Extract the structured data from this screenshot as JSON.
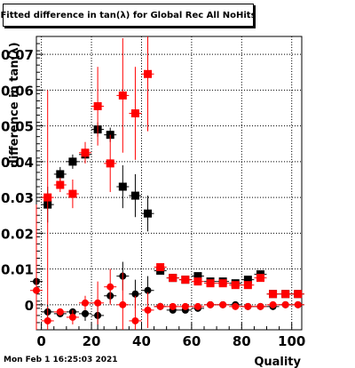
{
  "title": "Fitted difference in tan(λ) for Global Rec All NoHits",
  "timestamp": "Mon Feb  1 16:25:03 2021",
  "chart_data": {
    "type": "scatter",
    "title": "Fitted difference in tan(λ) for Global Rec All NoHits",
    "xlabel": "Quality",
    "ylabel": "difference in tan(λ)",
    "xlim": [
      -2,
      104
    ],
    "ylim": [
      -0.007,
      0.075
    ],
    "grid": true,
    "x_ticks": [
      0,
      20,
      40,
      60,
      80,
      100
    ],
    "y_ticks": [
      0,
      0.01,
      0.02,
      0.03,
      0.04,
      0.05,
      0.06,
      0.07
    ],
    "y_tick_labels": [
      "0",
      "0.01",
      "0.02",
      "0.03",
      "0.04",
      "0.05",
      "0.06",
      "0.07"
    ],
    "series": [
      {
        "marker": "square",
        "color": "#000000",
        "points": [
          {
            "x": 2.5,
            "y": 0.028,
            "err": 0.005
          },
          {
            "x": 7.5,
            "y": 0.0365,
            "err": 0.002
          },
          {
            "x": 12.5,
            "y": 0.04,
            "err": 0.002
          },
          {
            "x": 17.5,
            "y": 0.042,
            "err": 0.002
          },
          {
            "x": 22.5,
            "y": 0.049,
            "err": 0.002
          },
          {
            "x": 27.5,
            "y": 0.0475,
            "err": 0.002
          },
          {
            "x": 32.5,
            "y": 0.033,
            "err": 0.006
          },
          {
            "x": 37.5,
            "y": 0.0305,
            "err": 0.006
          },
          {
            "x": 42.5,
            "y": 0.0255,
            "err": 0.005
          },
          {
            "x": 47.5,
            "y": 0.0095,
            "err": 0.001
          },
          {
            "x": 52.5,
            "y": 0.0075,
            "err": 0.0005
          },
          {
            "x": 57.5,
            "y": 0.007,
            "err": 0.0005
          },
          {
            "x": 62.5,
            "y": 0.008,
            "err": 0.0005
          },
          {
            "x": 67.5,
            "y": 0.0065,
            "err": 0.0005
          },
          {
            "x": 72.5,
            "y": 0.0065,
            "err": 0.0005
          },
          {
            "x": 77.5,
            "y": 0.006,
            "err": 0.0005
          },
          {
            "x": 82.5,
            "y": 0.007,
            "err": 0.0005
          },
          {
            "x": 87.5,
            "y": 0.0085,
            "err": 0.0005
          },
          {
            "x": 92.5,
            "y": 0.003,
            "err": 0.0005
          },
          {
            "x": 97.5,
            "y": 0.003,
            "err": 0.0005
          },
          {
            "x": 102.5,
            "y": 0.003,
            "err": 0.0005
          }
        ]
      },
      {
        "marker": "square",
        "color": "#ff0000",
        "points": [
          {
            "x": 2.5,
            "y": 0.03,
            "err": 0.03
          },
          {
            "x": 7.5,
            "y": 0.0335,
            "err": 0.002
          },
          {
            "x": 12.5,
            "y": 0.031,
            "err": 0.004
          },
          {
            "x": 17.5,
            "y": 0.0425,
            "err": 0.003
          },
          {
            "x": 22.5,
            "y": 0.0555,
            "err": 0.011
          },
          {
            "x": 27.5,
            "y": 0.0395,
            "err": 0.008
          },
          {
            "x": 32.5,
            "y": 0.0585,
            "err": 0.016
          },
          {
            "x": 37.5,
            "y": 0.0535,
            "err": 0.013
          },
          {
            "x": 42.5,
            "y": 0.0645,
            "err": 0.016
          },
          {
            "x": 47.5,
            "y": 0.0105,
            "err": 0.0007
          },
          {
            "x": 52.5,
            "y": 0.0075,
            "err": 0.0005
          },
          {
            "x": 57.5,
            "y": 0.007,
            "err": 0.0005
          },
          {
            "x": 62.5,
            "y": 0.0065,
            "err": 0.0005
          },
          {
            "x": 67.5,
            "y": 0.006,
            "err": 0.0005
          },
          {
            "x": 72.5,
            "y": 0.006,
            "err": 0.0005
          },
          {
            "x": 77.5,
            "y": 0.0055,
            "err": 0.0005
          },
          {
            "x": 82.5,
            "y": 0.0055,
            "err": 0.0005
          },
          {
            "x": 87.5,
            "y": 0.0075,
            "err": 0.0005
          },
          {
            "x": 92.5,
            "y": 0.003,
            "err": 0.0005
          },
          {
            "x": 97.5,
            "y": 0.003,
            "err": 0.0005
          },
          {
            "x": 102.5,
            "y": 0.003,
            "err": 0.0005
          }
        ]
      },
      {
        "marker": "circle",
        "color": "#000000",
        "points": [
          {
            "x": -2,
            "y": 0.0065,
            "err": 0.002
          },
          {
            "x": 2.5,
            "y": -0.002,
            "err": 0.002
          },
          {
            "x": 7.5,
            "y": -0.0025,
            "err": 0.001
          },
          {
            "x": 12.5,
            "y": -0.002,
            "err": 0.001
          },
          {
            "x": 17.5,
            "y": -0.0025,
            "err": 0.002
          },
          {
            "x": 22.5,
            "y": -0.003,
            "err": 0.004
          },
          {
            "x": 27.5,
            "y": 0.0025,
            "err": 0.002
          },
          {
            "x": 32.5,
            "y": 0.008,
            "err": 0.004
          },
          {
            "x": 37.5,
            "y": 0.003,
            "err": 0.004
          },
          {
            "x": 42.5,
            "y": 0.004,
            "err": 0.004
          },
          {
            "x": 47.5,
            "y": -0.0005,
            "err": 0.001
          },
          {
            "x": 52.5,
            "y": -0.0015,
            "err": 0.0005
          },
          {
            "x": 57.5,
            "y": -0.0015,
            "err": 0.0005
          },
          {
            "x": 62.5,
            "y": -0.001,
            "err": 0.0005
          },
          {
            "x": 67.5,
            "y": 0.0,
            "err": 0.0005
          },
          {
            "x": 72.5,
            "y": 0.0,
            "err": 0.0005
          },
          {
            "x": 77.5,
            "y": 0.0,
            "err": 0.0005
          },
          {
            "x": 82.5,
            "y": -0.0005,
            "err": 0.0005
          },
          {
            "x": 87.5,
            "y": -0.0005,
            "err": 0.0005
          },
          {
            "x": 92.5,
            "y": -0.0005,
            "err": 0.0005
          },
          {
            "x": 97.5,
            "y": 0.0,
            "err": 0.0005
          },
          {
            "x": 102.5,
            "y": 0.0,
            "err": 0.0005
          }
        ]
      },
      {
        "marker": "circle",
        "color": "#ff0000",
        "points": [
          {
            "x": -2,
            "y": 0.004,
            "err": 0.024
          },
          {
            "x": 2.5,
            "y": -0.0045,
            "err": 0.004
          },
          {
            "x": 7.5,
            "y": -0.002,
            "err": 0.001
          },
          {
            "x": 12.5,
            "y": -0.0035,
            "err": 0.002
          },
          {
            "x": 17.5,
            "y": 0.0005,
            "err": 0.002
          },
          {
            "x": 22.5,
            "y": 0.0005,
            "err": 0.006
          },
          {
            "x": 27.5,
            "y": 0.005,
            "err": 0.005
          },
          {
            "x": 32.5,
            "y": 0.0,
            "err": 0.009
          },
          {
            "x": 37.5,
            "y": -0.0045,
            "err": 0.007
          },
          {
            "x": 42.5,
            "y": -0.0015,
            "err": 0.005
          },
          {
            "x": 47.5,
            "y": -0.0005,
            "err": 0.001
          },
          {
            "x": 52.5,
            "y": -0.0005,
            "err": 0.0005
          },
          {
            "x": 57.5,
            "y": -0.0005,
            "err": 0.0005
          },
          {
            "x": 62.5,
            "y": -0.0005,
            "err": 0.0005
          },
          {
            "x": 67.5,
            "y": 0.0,
            "err": 0.0005
          },
          {
            "x": 72.5,
            "y": 0.0,
            "err": 0.0005
          },
          {
            "x": 77.5,
            "y": -0.0005,
            "err": 0.0005
          },
          {
            "x": 82.5,
            "y": -0.0005,
            "err": 0.0005
          },
          {
            "x": 87.5,
            "y": -0.0005,
            "err": 0.0005
          },
          {
            "x": 92.5,
            "y": 0.0,
            "err": 0.0005
          },
          {
            "x": 97.5,
            "y": 0.0,
            "err": 0.0005
          },
          {
            "x": 102.5,
            "y": 0.0,
            "err": 0.0005
          }
        ]
      }
    ]
  }
}
